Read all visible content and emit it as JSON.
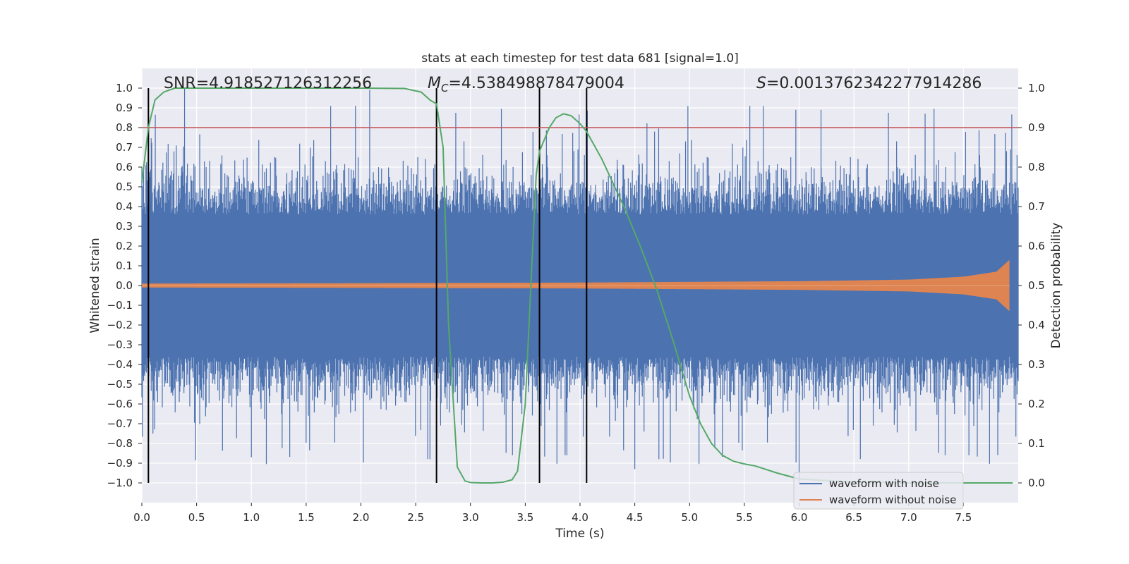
{
  "chart_data": {
    "type": "line",
    "title": "stats at each timestep for test data 681 [signal=1.0]",
    "xlabel": "Time (s)",
    "ylabel": "Whitened strain",
    "ylabel_right": "Detection probability",
    "xlim": [
      0.0,
      8.0
    ],
    "ylim": [
      -1.1,
      1.1
    ],
    "ylim_right": [
      -0.05,
      1.05
    ],
    "xticks": [
      0.0,
      0.5,
      1.0,
      1.5,
      2.0,
      2.5,
      3.0,
      3.5,
      4.0,
      4.5,
      5.0,
      5.5,
      6.0,
      6.5,
      7.0,
      7.5
    ],
    "xtick_labels": [
      "0.0",
      "0.5",
      "1.0",
      "1.5",
      "2.0",
      "2.5",
      "3.0",
      "3.5",
      "4.0",
      "4.5",
      "5.0",
      "5.5",
      "6.0",
      "6.5",
      "7.0",
      "7.5"
    ],
    "yticks": [
      1.0,
      0.9,
      0.8,
      0.7,
      0.6,
      0.5,
      0.4,
      0.3,
      0.2,
      0.1,
      0.0,
      -0.1,
      -0.2,
      -0.3,
      -0.4,
      -0.5,
      -0.6,
      -0.7,
      -0.8,
      -0.9,
      -1.0
    ],
    "ytick_labels": [
      "1.0",
      "0.9",
      "0.8",
      "0.7",
      "0.6",
      "0.5",
      "0.4",
      "0.3",
      "0.2",
      "0.1",
      "0.0",
      "−0.1",
      "−0.2",
      "−0.3",
      "−0.4",
      "−0.5",
      "−0.6",
      "−0.7",
      "−0.8",
      "−0.9",
      "−1.0"
    ],
    "yticks_right": [
      1.0,
      0.9,
      0.8,
      0.7,
      0.6,
      0.5,
      0.4,
      0.3,
      0.2,
      0.1,
      0.0
    ],
    "ytick_labels_right": [
      "1.0",
      "0.9",
      "0.8",
      "0.7",
      "0.6",
      "0.5",
      "0.4",
      "0.3",
      "0.2",
      "0.1",
      "0.0"
    ],
    "annotations": {
      "snr": "SNR=4.918527126312256",
      "mc_symbol": "M",
      "mc_subscript": "C",
      "mc_value": "=4.538498878479004",
      "s_symbol": "S",
      "s_value": "=0.0013762342277914286"
    },
    "threshold_line": {
      "y_right": 0.9,
      "color": "#c44e52"
    },
    "vertical_lines_x": [
      0.06,
      2.69,
      3.63,
      4.06
    ],
    "vertical_line_color": "#000000",
    "legend": {
      "location": "lower right",
      "entries": [
        {
          "label": "waveform with noise",
          "color": "#4c72b0"
        },
        {
          "label": "waveform without noise",
          "color": "#dd8452"
        }
      ]
    },
    "series": [
      {
        "name": "waveform with noise",
        "color": "#4c72b0",
        "axis": "left",
        "x_range": [
          0.0,
          8.0
        ],
        "band_core_abs": 0.36,
        "max_abs_peak": 1.0,
        "notable_peaks": [
          {
            "x": 0.39,
            "y": 1.0
          },
          {
            "x": 2.08,
            "y": 0.99
          },
          {
            "x": 1.95,
            "y": 0.91
          },
          {
            "x": 5.55,
            "y": 0.91
          },
          {
            "x": 5.97,
            "y": 0.89
          },
          {
            "x": 6.2,
            "y": 0.89
          },
          {
            "x": 7.15,
            "y": 0.87
          },
          {
            "x": 6.0,
            "y": -1.0
          },
          {
            "x": 2.63,
            "y": -0.88
          },
          {
            "x": 3.88,
            "y": -0.86
          },
          {
            "x": 4.5,
            "y": -0.93
          },
          {
            "x": 1.0,
            "y": -0.87
          },
          {
            "x": 4.72,
            "y": -0.88
          },
          {
            "x": 7.55,
            "y": -0.86
          }
        ]
      },
      {
        "name": "waveform without noise",
        "color": "#dd8452",
        "axis": "left",
        "x_range": [
          0.0,
          7.92
        ],
        "envelope": [
          [
            0.0,
            0.01
          ],
          [
            2.0,
            0.012
          ],
          [
            4.0,
            0.015
          ],
          [
            6.0,
            0.022
          ],
          [
            7.0,
            0.03
          ],
          [
            7.5,
            0.045
          ],
          [
            7.8,
            0.07
          ],
          [
            7.92,
            0.13
          ]
        ]
      },
      {
        "name": "detection probability",
        "color": "#55a868",
        "axis": "right",
        "x": [
          0.0,
          0.06,
          0.12,
          0.2,
          0.3,
          0.4,
          0.5,
          1.0,
          1.5,
          2.0,
          2.4,
          2.55,
          2.63,
          2.69,
          2.75,
          2.8,
          2.88,
          2.95,
          3.0,
          3.1,
          3.2,
          3.3,
          3.38,
          3.43,
          3.5,
          3.56,
          3.6,
          3.63,
          3.66,
          3.72,
          3.78,
          3.85,
          3.92,
          4.0,
          4.06,
          4.2,
          4.4,
          4.55,
          4.7,
          4.85,
          5.0,
          5.1,
          5.2,
          5.3,
          5.4,
          5.5,
          5.6,
          5.8,
          6.0,
          6.5,
          7.0,
          7.5,
          7.95
        ],
        "values": [
          0.76,
          0.9,
          0.97,
          0.99,
          1.0,
          1.0,
          1.0,
          1.0,
          1.0,
          1.0,
          0.999,
          0.99,
          0.97,
          0.96,
          0.85,
          0.4,
          0.04,
          0.005,
          0.001,
          0.0,
          0.0,
          0.002,
          0.008,
          0.03,
          0.2,
          0.55,
          0.78,
          0.84,
          0.86,
          0.9,
          0.925,
          0.935,
          0.93,
          0.91,
          0.89,
          0.82,
          0.7,
          0.6,
          0.49,
          0.36,
          0.22,
          0.15,
          0.1,
          0.07,
          0.055,
          0.048,
          0.043,
          0.025,
          0.01,
          0.002,
          0.0,
          0.0,
          0.0
        ]
      }
    ]
  }
}
